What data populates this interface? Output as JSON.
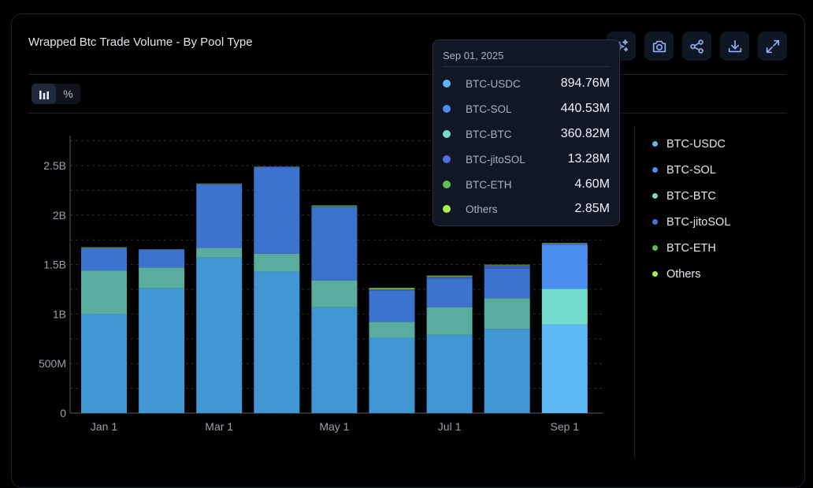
{
  "card": {
    "title": "Wrapped Btc Trade Volume - By Pool Type"
  },
  "toolbar": {
    "buttons": [
      {
        "icon": "sparkles-icon",
        "label": "AI insights"
      },
      {
        "icon": "camera-icon",
        "label": "Screenshot"
      },
      {
        "icon": "share-icon",
        "label": "Share"
      },
      {
        "icon": "download-icon",
        "label": "Download"
      },
      {
        "icon": "expand-icon",
        "label": "Fullscreen"
      }
    ]
  },
  "view_toggle": {
    "options": [
      {
        "icon": "bar-chart-icon",
        "label": "",
        "active": true
      },
      {
        "icon": "percent",
        "label": "%",
        "active": false
      }
    ]
  },
  "tooltip": {
    "date": "Sep 01, 2025",
    "rows": [
      {
        "label": "BTC-USDC",
        "value": "894.76M",
        "color": "#5bb8f5"
      },
      {
        "label": "BTC-SOL",
        "value": "440.53M",
        "color": "#4a8ef0"
      },
      {
        "label": "BTC-BTC",
        "value": "360.82M",
        "color": "#73dccc"
      },
      {
        "label": "BTC-jitoSOL",
        "value": "13.28M",
        "color": "#4f6fe0"
      },
      {
        "label": "BTC-ETH",
        "value": "4.60M",
        "color": "#5fbf4f"
      },
      {
        "label": "Others",
        "value": "2.85M",
        "color": "#a8f04f"
      }
    ]
  },
  "chart_data": {
    "type": "bar",
    "stacked": true,
    "title": "Wrapped Btc Trade Volume - By Pool Type",
    "xlabel": "",
    "ylabel": "",
    "categories": [
      "Jan 1",
      "Feb 1",
      "Mar 1",
      "Apr 1",
      "May 1",
      "Jun 1",
      "Jul 1",
      "Aug 1",
      "Sep 1"
    ],
    "x_tick_labels": [
      "Jan 1",
      "Mar 1",
      "May 1",
      "Jul 1",
      "Sep 1"
    ],
    "y_ticks": [
      0,
      500000000,
      1000000000,
      1500000000,
      2000000000,
      2500000000
    ],
    "y_tick_labels": [
      "0",
      "500M",
      "1B",
      "1.5B",
      "2B",
      "2.5B"
    ],
    "ylim": [
      0,
      2800000000
    ],
    "grid": true,
    "legend_position": "right",
    "highlighted_category": "Sep 1",
    "series": [
      {
        "name": "BTC-USDC",
        "color": "#4196d4",
        "highlight_color": "#5bb8f5",
        "values": [
          1000000000,
          1260000000,
          1570000000,
          1430000000,
          1070000000,
          760000000,
          790000000,
          850000000,
          894760000
        ]
      },
      {
        "name": "BTC-BTC",
        "color": "#5aac9e",
        "highlight_color": "#73dccc",
        "values": [
          440000000,
          210000000,
          100000000,
          180000000,
          270000000,
          160000000,
          280000000,
          310000000,
          360820000
        ]
      },
      {
        "name": "BTC-SOL",
        "color": "#3b73cf",
        "highlight_color": "#4a8ef0",
        "values": [
          220000000,
          180000000,
          640000000,
          870000000,
          740000000,
          320000000,
          290000000,
          300000000,
          440530000
        ]
      },
      {
        "name": "BTC-jitoSOL",
        "color": "#3f5bb8",
        "highlight_color": "#4f6fe0",
        "values": [
          5000000,
          3000000,
          4000000,
          4000000,
          6000000,
          8000000,
          15000000,
          30000000,
          13280000
        ]
      },
      {
        "name": "BTC-ETH",
        "color": "#4c9a45",
        "highlight_color": "#5fbf4f",
        "values": [
          8000000,
          2000000,
          3000000,
          3000000,
          8000000,
          6000000,
          5000000,
          5000000,
          4600000
        ]
      },
      {
        "name": "Others",
        "color": "#86c045",
        "highlight_color": "#a8f04f",
        "values": [
          2000000,
          1000000,
          2000000,
          2000000,
          3000000,
          10000000,
          8000000,
          4000000,
          2850000
        ]
      }
    ]
  },
  "legend": {
    "items": [
      {
        "label": "BTC-USDC",
        "color": "#5bb8f5"
      },
      {
        "label": "BTC-SOL",
        "color": "#4a8ef0"
      },
      {
        "label": "BTC-BTC",
        "color": "#73dccc"
      },
      {
        "label": "BTC-jitoSOL",
        "color": "#4f6fe0"
      },
      {
        "label": "BTC-ETH",
        "color": "#5fbf4f"
      },
      {
        "label": "Others",
        "color": "#a8f04f"
      }
    ]
  }
}
